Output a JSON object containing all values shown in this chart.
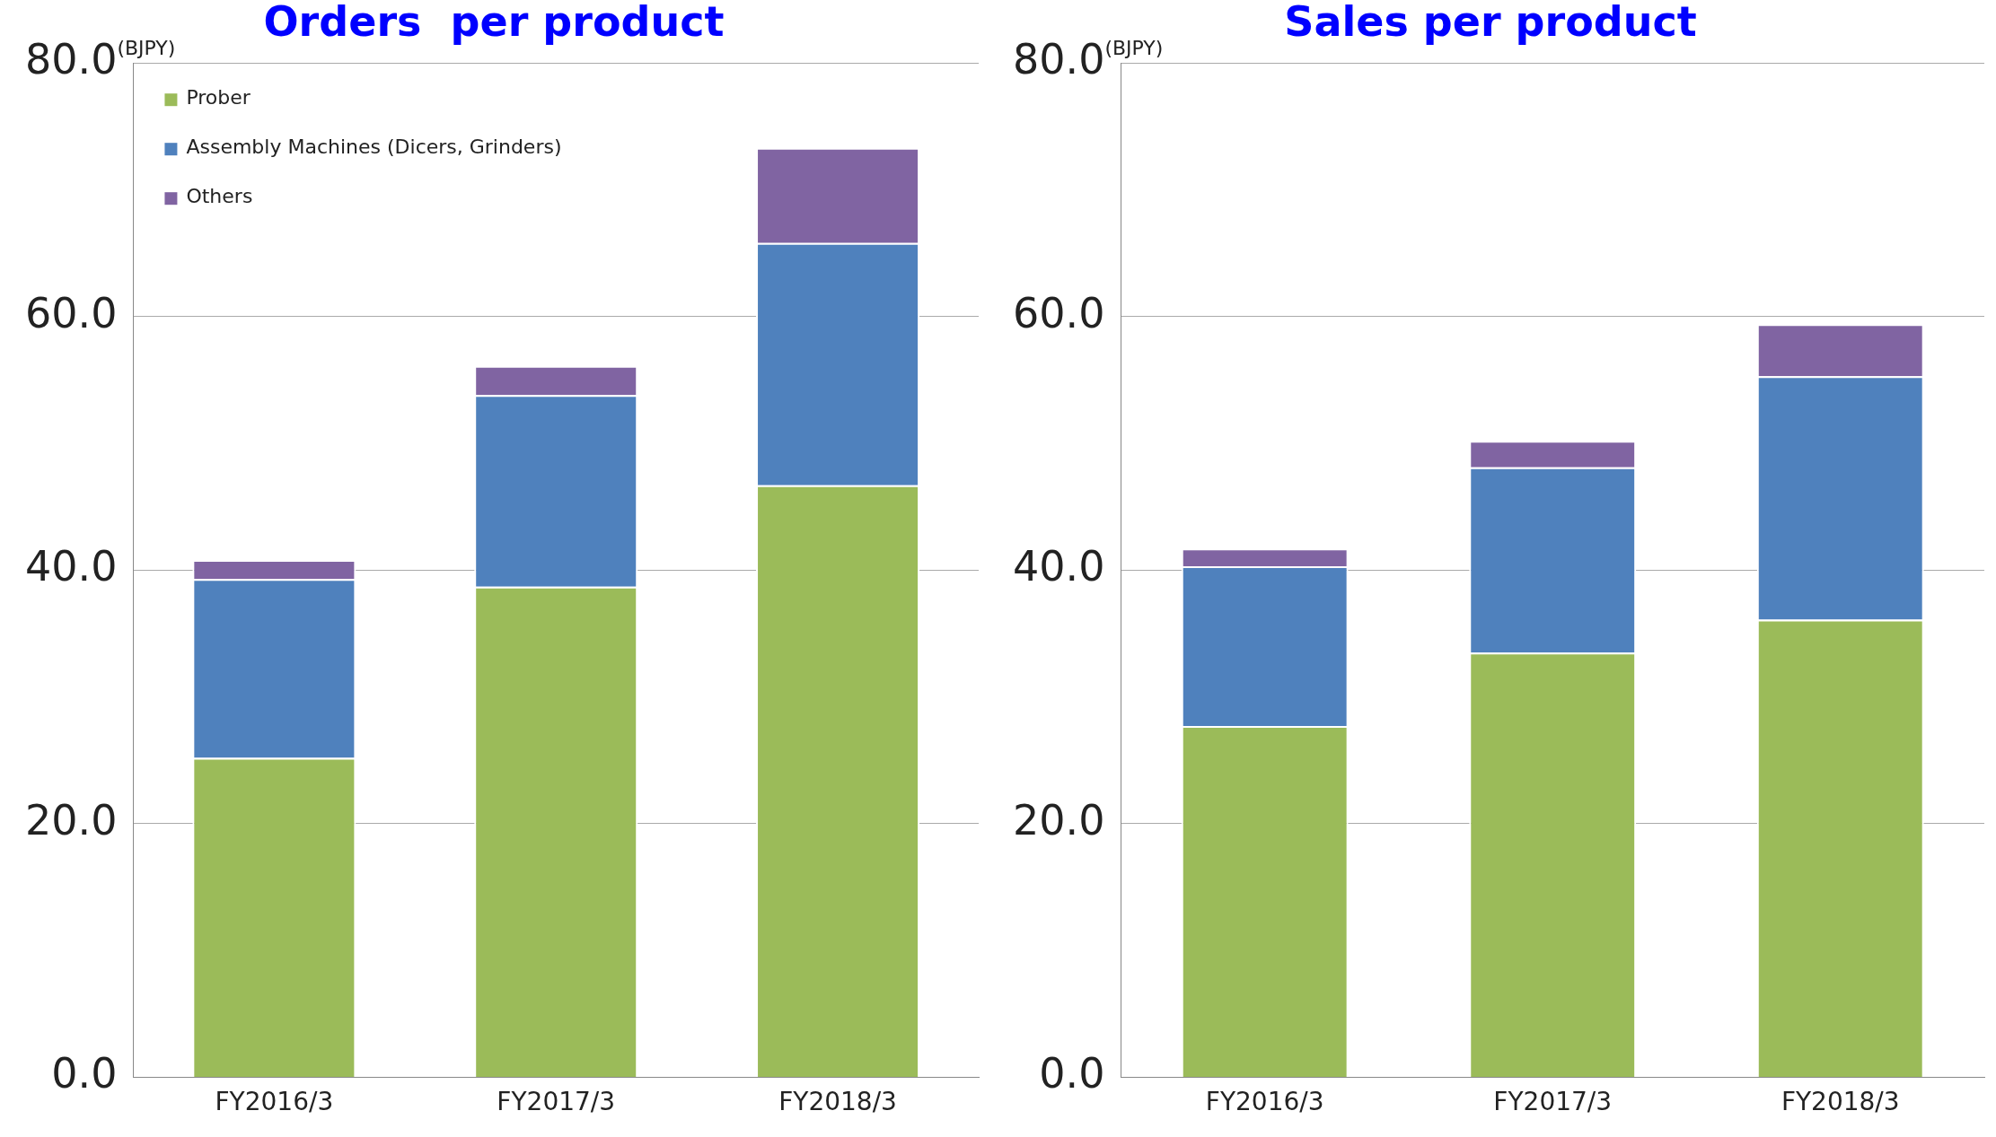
{
  "chart_data": [
    {
      "type": "bar",
      "title": "Orders  per product",
      "ylabel": "(BJPY)",
      "stacked": true,
      "categories": [
        "FY2016/3",
        "FY2017/3",
        "FY2018/3"
      ],
      "series": [
        {
          "name": "Prober",
          "color": "#9bbb59",
          "values": [
            25.2,
            38.7,
            46.7
          ]
        },
        {
          "name": "Assembly Machines (Dicers, Grinders)",
          "color": "#4f81bd",
          "values": [
            14.1,
            15.1,
            19.1
          ]
        },
        {
          "name": "Others",
          "color": "#8064a2",
          "values": [
            1.5,
            2.3,
            7.5
          ]
        }
      ],
      "ylim": [
        0,
        80
      ],
      "yticks": [
        {
          "value": 0,
          "label": "0.0"
        },
        {
          "value": 20,
          "label": "20.0"
        },
        {
          "value": 40,
          "label": "40.0"
        },
        {
          "value": 60,
          "label": "60.0"
        },
        {
          "value": 80,
          "label": "80.0"
        }
      ],
      "grid": "y",
      "legend": "top left"
    },
    {
      "type": "bar",
      "title": "Sales per product",
      "ylabel": "(BJPY)",
      "stacked": true,
      "categories": [
        "FY2016/3",
        "FY2017/3",
        "FY2018/3"
      ],
      "series": [
        {
          "color": "#9bbb59",
          "values": [
            27.7,
            33.5,
            36.1
          ]
        },
        {
          "color": "#4f81bd",
          "values": [
            12.6,
            14.6,
            19.2
          ]
        },
        {
          "color": "#8064a2",
          "values": [
            1.4,
            2.1,
            4.1
          ]
        }
      ],
      "ylim": [
        0,
        80
      ],
      "yticks": [
        {
          "value": 0,
          "label": "0.0"
        },
        {
          "value": 20,
          "label": "20.0"
        },
        {
          "value": 40,
          "label": "40.0"
        },
        {
          "value": 60,
          "label": "60.0"
        },
        {
          "value": 80,
          "label": "80.0"
        }
      ],
      "grid": "y"
    }
  ]
}
